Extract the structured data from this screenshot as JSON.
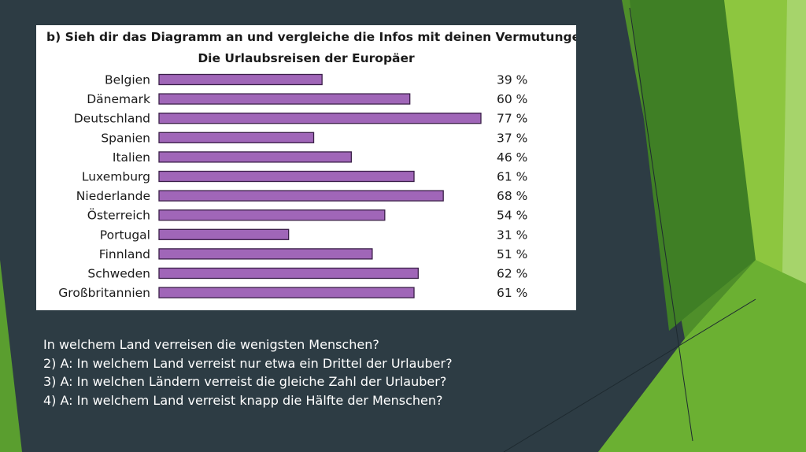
{
  "slide": {
    "background_color": "#2d3c44",
    "accent_colors": [
      "#8dc63f",
      "#5a9e2f",
      "#a6d46b"
    ]
  },
  "chart_data": {
    "type": "bar",
    "orientation": "horizontal",
    "heading": "b) Sieh dir das Diagramm an und vergleiche die Infos mit deinen Vermutungen.",
    "title": "Die Urlaubsreisen der Europäer",
    "categories": [
      "Belgien",
      "Dänemark",
      "Deutschland",
      "Spanien",
      "Italien",
      "Luxemburg",
      "Niederlande",
      "Österreich",
      "Portugal",
      "Finnland",
      "Schweden",
      "Großbritannien"
    ],
    "values": [
      39,
      60,
      77,
      37,
      46,
      61,
      68,
      54,
      31,
      51,
      62,
      61
    ],
    "labels": [
      "39 %",
      "60 %",
      "77 %",
      "37 %",
      "46 %",
      "61 %",
      "68 %",
      "54 %",
      "31 %",
      "51 %",
      "62 %",
      "61 %"
    ],
    "unit": "%",
    "bar_color": "#a066b8",
    "bar_stroke": "#3a1f48",
    "xlim": [
      0,
      77
    ],
    "xlabel": "",
    "ylabel": ""
  },
  "questions": [
    "In welchem Land verreisen die wenigsten Menschen?",
    "2) A: In welchem Land verreist nur etwa ein Drittel der Urlauber?",
    "3) A: In welchen Ländern verreist die gleiche Zahl der Urlauber?",
    "4) A: In welchem Land verreist knapp die Hälfte der Menschen?"
  ]
}
